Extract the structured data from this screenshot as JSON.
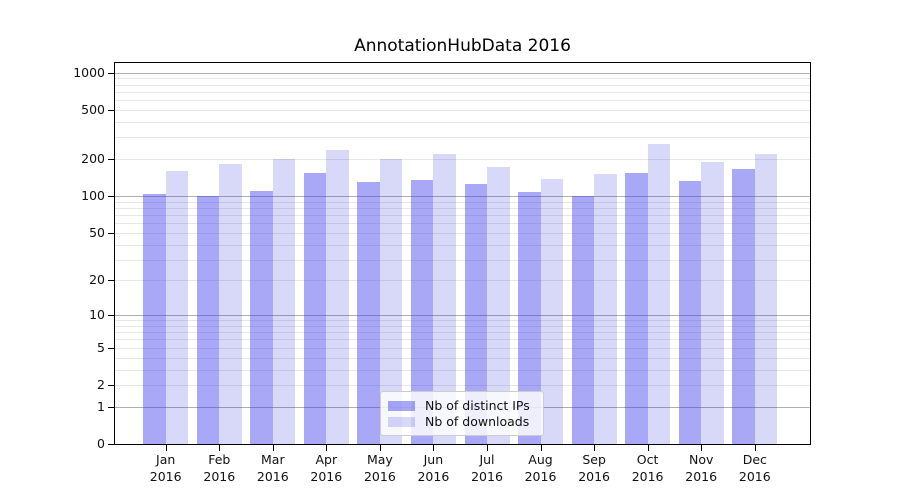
{
  "chart_data": {
    "type": "bar",
    "title": "AnnotationHubData 2016",
    "categories": [
      "Jan 2016",
      "Feb 2016",
      "Mar 2016",
      "Apr 2016",
      "May 2016",
      "Jun 2016",
      "Jul 2016",
      "Aug 2016",
      "Sep 2016",
      "Oct 2016",
      "Nov 2016",
      "Dec 2016"
    ],
    "series": [
      {
        "name": "Nb of distinct IPs",
        "color": "rgba(48,48,234,0.42)",
        "values": [
          104,
          100,
          110,
          153,
          131,
          134,
          125,
          107,
          100,
          155,
          132,
          166
        ]
      },
      {
        "name": "Nb of downloads",
        "color": "rgba(12,12,210,0.16)",
        "values": [
          160,
          181,
          202,
          236,
          201,
          218,
          171,
          138,
          150,
          266,
          190,
          221
        ]
      }
    ],
    "y_axis": {
      "scale": "log1p",
      "ticks": [
        0,
        1,
        2,
        5,
        10,
        20,
        50,
        100,
        200,
        500,
        1000
      ],
      "major_gridlines": [
        1,
        10,
        100,
        1000
      ],
      "minor_gridline_decades": [
        1,
        10,
        100
      ],
      "range": [
        0,
        1200
      ]
    },
    "legend_position": "lower center inside",
    "grid": true
  },
  "colors": {
    "background": "#ffffff",
    "axis": "#000000",
    "major_grid": "#b0b0b0",
    "minor_grid": "#e7e7e7",
    "tick_text": "#111111"
  }
}
